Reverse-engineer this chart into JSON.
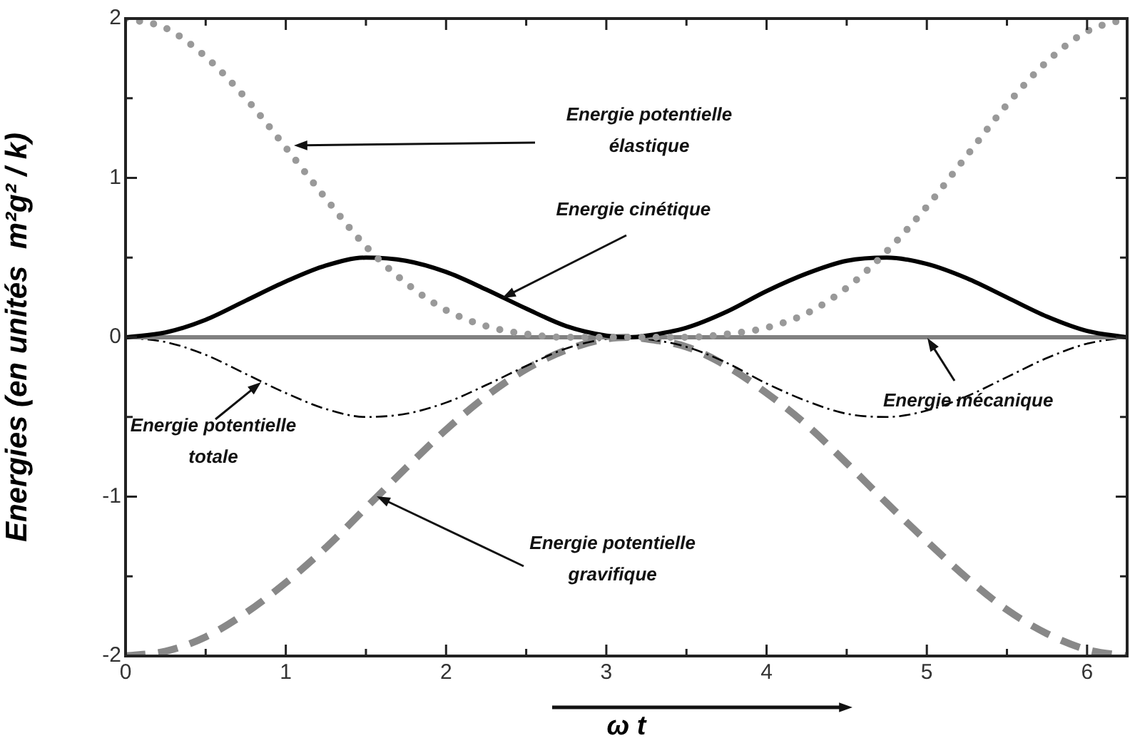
{
  "chart_data": {
    "type": "line",
    "xlabel": "ω t",
    "ylabel": "Energies (en unités  m²g² / k)",
    "x": [
      0,
      0.25,
      0.5,
      0.75,
      1,
      1.25,
      1.5,
      1.75,
      2,
      2.25,
      2.5,
      2.75,
      3,
      3.14,
      3.25,
      3.5,
      3.75,
      4,
      4.25,
      4.5,
      4.75,
      5,
      5.25,
      5.5,
      5.75,
      6,
      6.25
    ],
    "series": [
      {
        "type": "line",
        "color": "#999999",
        "line_style": "dotted",
        "values": [
          2,
          1.94,
          1.76,
          1.5,
          1.19,
          0.87,
          0.57,
          0.34,
          0.17,
          0.07,
          0.02,
          0,
          0,
          0,
          0,
          0,
          0.02,
          0.06,
          0.15,
          0.31,
          0.54,
          0.82,
          1.14,
          1.46,
          1.73,
          1.92,
          2
        ]
      },
      {
        "type": "line",
        "color": "#000000",
        "line_style": "solid",
        "values": [
          0,
          0.03,
          0.11,
          0.23,
          0.35,
          0.45,
          0.5,
          0.48,
          0.41,
          0.3,
          0.18,
          0.07,
          0.01,
          0,
          0.01,
          0.06,
          0.16,
          0.29,
          0.4,
          0.48,
          0.5,
          0.46,
          0.37,
          0.25,
          0.13,
          0.04,
          0
        ]
      },
      {
        "type": "line",
        "color": "#808080",
        "line_style": "solid",
        "values": [
          0,
          0,
          0,
          0,
          0,
          0,
          0,
          0,
          0,
          0,
          0,
          0,
          0,
          0,
          0,
          0,
          0,
          0,
          0,
          0,
          0,
          0,
          0,
          0,
          0,
          0,
          0
        ]
      },
      {
        "type": "line",
        "color": "#000000",
        "line_style": "dashdot",
        "values": [
          0,
          -0.03,
          -0.11,
          -0.23,
          -0.35,
          -0.45,
          -0.5,
          -0.48,
          -0.41,
          -0.3,
          -0.18,
          -0.07,
          -0.01,
          0,
          -0.01,
          -0.06,
          -0.16,
          -0.29,
          -0.4,
          -0.48,
          -0.5,
          -0.46,
          -0.37,
          -0.25,
          -0.13,
          -0.04,
          0
        ]
      },
      {
        "type": "line",
        "color": "#888888",
        "line_style": "dashed",
        "values": [
          -2,
          -1.97,
          -1.88,
          -1.73,
          -1.54,
          -1.32,
          -1.07,
          -0.82,
          -0.58,
          -0.37,
          -0.2,
          -0.08,
          -0.01,
          0,
          -0.01,
          -0.06,
          -0.18,
          -0.35,
          -0.55,
          -0.79,
          -1.04,
          -1.28,
          -1.51,
          -1.71,
          -1.86,
          -1.96,
          -2
        ]
      }
    ],
    "xlim": [
      0,
      6.25
    ],
    "ylim": [
      -2,
      2
    ],
    "xticks": [
      0,
      {
        "value": 0.5,
        "label": null
      },
      1,
      {
        "value": 1.5,
        "label": null
      },
      2,
      {
        "value": 2.5,
        "label": null
      },
      3,
      {
        "value": 3.5,
        "label": null
      },
      4,
      {
        "value": 4.5,
        "label": null
      },
      5,
      {
        "value": 5.5,
        "label": null
      },
      6
    ],
    "yticks": [
      -2,
      {
        "value": -1.5,
        "label": null
      },
      -1,
      {
        "value": -0.5,
        "label": null
      },
      0,
      {
        "value": 0.5,
        "label": null
      },
      1,
      {
        "value": 1.5,
        "label": null
      },
      2
    ],
    "grid": false,
    "legend": false,
    "marker": "none",
    "annotations": [
      "Energie potentielle\nélastique",
      {
        "text": "Energie cinétique",
        "x": 2.35,
        "y": 0.25
      },
      {
        "text": "Energie mécanique",
        "x": 5,
        "y": 0
      },
      {
        "text": "Energie potentielle\ntotale",
        "x": 0.85,
        "y": -0.28
      },
      {
        "text": "Energie potentielle\ngravifique",
        "x": 1.57,
        "y": -1
      }
    ]
  }
}
